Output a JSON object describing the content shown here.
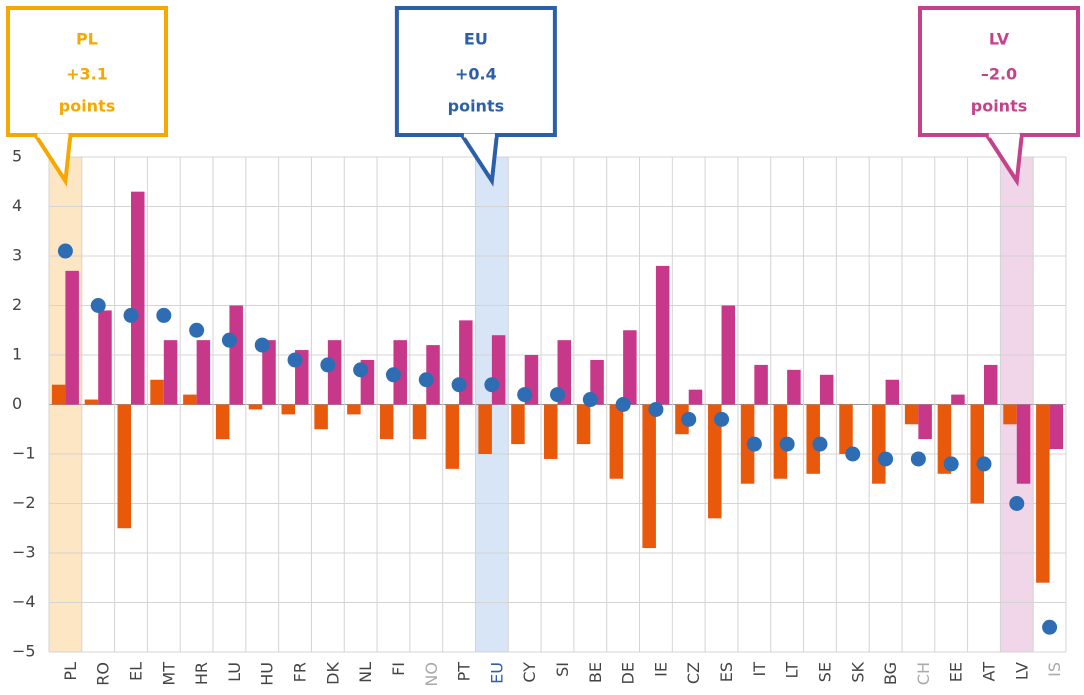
{
  "chart_data": {
    "type": "bar",
    "categories": [
      "PL",
      "RO",
      "EL",
      "MT",
      "HR",
      "LU",
      "HU",
      "FR",
      "DK",
      "NL",
      "FI",
      "NO",
      "PT",
      "EU",
      "CY",
      "SI",
      "BE",
      "DE",
      "IE",
      "CZ",
      "ES",
      "IT",
      "LT",
      "SE",
      "SK",
      "BG",
      "CH",
      "EE",
      "AT",
      "LV",
      "IS"
    ],
    "category_label_colors": [
      "#444",
      "#444",
      "#444",
      "#444",
      "#444",
      "#444",
      "#444",
      "#444",
      "#444",
      "#444",
      "#444",
      "#aaa",
      "#444",
      "#2b5fa8",
      "#444",
      "#444",
      "#444",
      "#444",
      "#444",
      "#444",
      "#444",
      "#444",
      "#444",
      "#444",
      "#444",
      "#444",
      "#aaa",
      "#444",
      "#444",
      "#444",
      "#aaa"
    ],
    "series": [
      {
        "color": "#e8590c",
        "kind": "bar",
        "values": [
          0.4,
          0.1,
          -2.5,
          0.5,
          0.2,
          -0.7,
          -0.1,
          -0.2,
          -0.5,
          -0.2,
          -0.7,
          -0.7,
          -1.3,
          -1.0,
          -0.8,
          -1.1,
          -0.8,
          -1.5,
          -2.9,
          -0.6,
          -2.3,
          -1.6,
          -1.5,
          -1.4,
          -1.0,
          -1.6,
          -0.4,
          -1.4,
          -2.0,
          -0.4,
          -3.6
        ]
      },
      {
        "color": "#c8388a",
        "kind": "bar",
        "values": [
          2.7,
          1.9,
          4.3,
          1.3,
          1.3,
          2.0,
          1.3,
          1.1,
          1.3,
          0.9,
          1.3,
          1.2,
          1.7,
          1.4,
          1.0,
          1.3,
          0.9,
          1.5,
          2.8,
          0.3,
          2.0,
          0.8,
          0.7,
          0.6,
          0.0,
          0.5,
          -0.7,
          0.2,
          0.8,
          -1.6,
          -0.9
        ]
      },
      {
        "color": "#2e6db4",
        "kind": "dot",
        "values": [
          3.1,
          2.0,
          1.8,
          1.8,
          1.5,
          1.3,
          1.2,
          0.9,
          0.8,
          0.7,
          0.6,
          0.5,
          0.4,
          0.4,
          0.2,
          0.2,
          0.1,
          0.0,
          -0.1,
          -0.3,
          -0.3,
          -0.8,
          -0.8,
          -0.8,
          -1.0,
          -1.1,
          -1.1,
          -1.2,
          -1.2,
          -2.0,
          -4.5
        ]
      }
    ],
    "ylim": [
      -5,
      5
    ],
    "yticks": [
      {
        "value": -5,
        "label": "−5"
      },
      {
        "value": -4,
        "label": "−4"
      },
      {
        "value": -3,
        "label": "−3"
      },
      {
        "value": -2,
        "label": "−2"
      },
      {
        "value": -1,
        "label": "−1"
      },
      0,
      1,
      2,
      3,
      4,
      5
    ],
    "grid": true,
    "annotations": [
      {
        "category": "PL",
        "label": "PL",
        "value_text": "+3.1",
        "unit": "points",
        "color": "#f5a800",
        "band_color": "#fde6c4"
      },
      {
        "category": "EU",
        "label": "EU",
        "value_text": "+0.4",
        "unit": "points",
        "color": "#2b5fa8",
        "band_color": "#d8e5f6"
      },
      {
        "category": "LV",
        "label": "LV",
        "value_text": "–2.0",
        "unit": "points",
        "color": "#c4428c",
        "band_color": "#f1d5e8"
      }
    ]
  }
}
